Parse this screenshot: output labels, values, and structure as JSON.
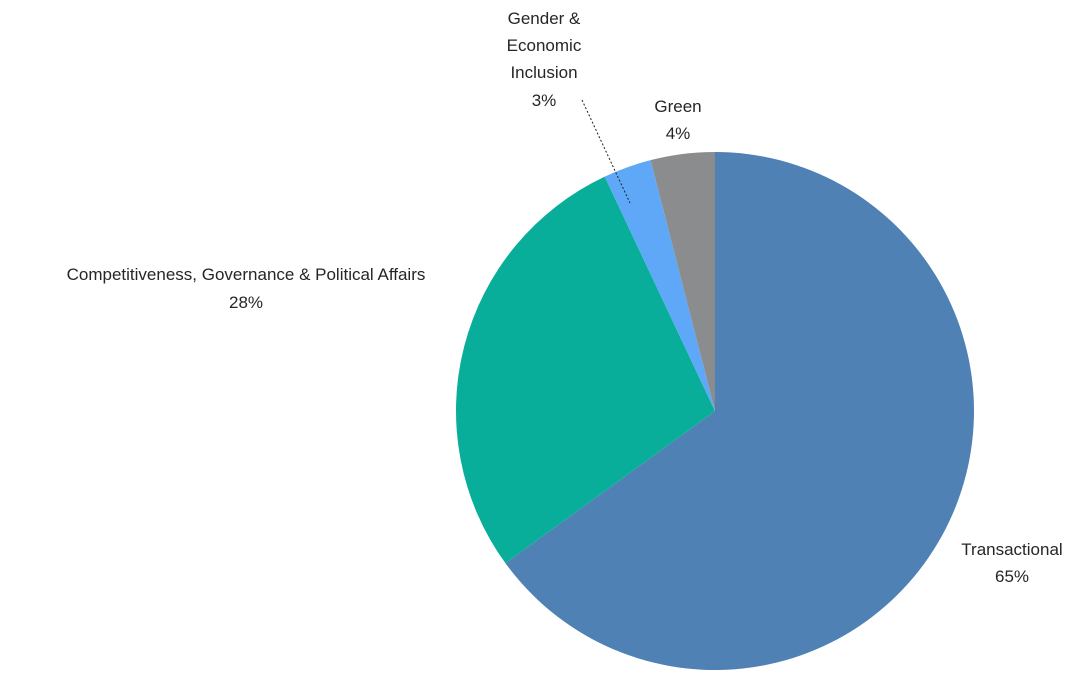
{
  "chart_data": {
    "type": "pie",
    "title": "",
    "start_angle_deg": 0,
    "direction": "clockwise",
    "slices": [
      {
        "label": "Transactional",
        "pct_label": "65%",
        "value": 65,
        "color": "#4F81B5"
      },
      {
        "label": "Competitiveness, Governance & Political Affairs",
        "pct_label": "28%",
        "value": 28,
        "color": "#08AE9A"
      },
      {
        "label": "Gender & Economic Inclusion",
        "pct_label": "3%",
        "value": 3,
        "color": "#5FA8F8"
      },
      {
        "label": "Green",
        "pct_label": "4%",
        "value": 4,
        "color": "#8A8C8E"
      }
    ],
    "legend": "none"
  }
}
